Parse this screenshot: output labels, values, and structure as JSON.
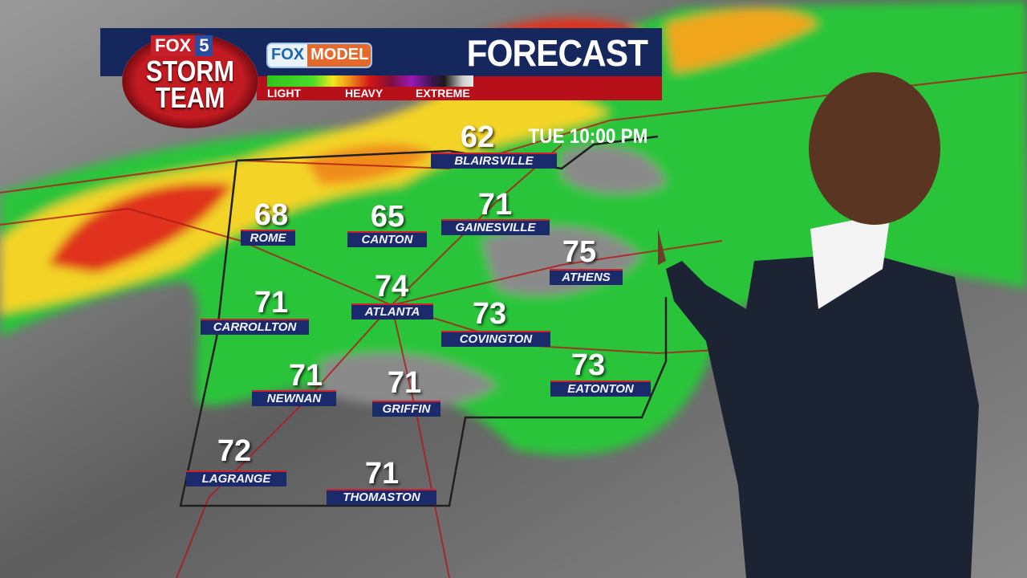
{
  "header": {
    "logo": {
      "station": "FOX",
      "channel": "5",
      "line1": "STORM",
      "line2": "TEAM"
    },
    "model_badge": {
      "part1": "FOX",
      "part2": "MODEL"
    },
    "title": "FORECAST",
    "time": "TUE 10:00 PM",
    "legend": {
      "light": "LIGHT",
      "heavy": "HEAVY",
      "extreme": "EXTREME"
    }
  },
  "colors": {
    "navy": "#16275e",
    "red": "#b8101b",
    "rain_light": "#2fc41b",
    "rain_moderate": "#f2e61e",
    "rain_heavy": "#d01616"
  },
  "cities": [
    {
      "name": "BLAIRSVILLE",
      "temp": "62"
    },
    {
      "name": "ROME",
      "temp": "68"
    },
    {
      "name": "CANTON",
      "temp": "65"
    },
    {
      "name": "GAINESVILLE",
      "temp": "71"
    },
    {
      "name": "ATHENS",
      "temp": "75"
    },
    {
      "name": "ATLANTA",
      "temp": "74"
    },
    {
      "name": "CARROLLTON",
      "temp": "71"
    },
    {
      "name": "COVINGTON",
      "temp": "73"
    },
    {
      "name": "EATONTON",
      "temp": "73"
    },
    {
      "name": "NEWNAN",
      "temp": "71"
    },
    {
      "name": "GRIFFIN",
      "temp": "71"
    },
    {
      "name": "LAGRANGE",
      "temp": "72"
    },
    {
      "name": "THOMASTON",
      "temp": "71"
    }
  ]
}
